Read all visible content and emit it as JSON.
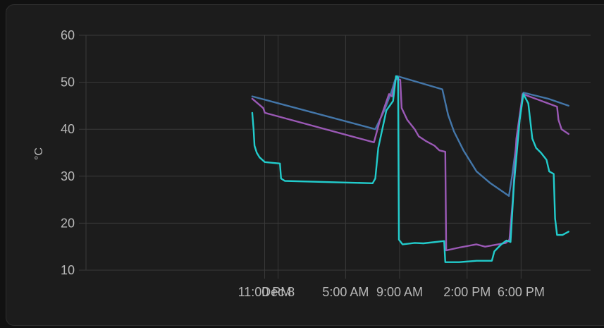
{
  "chart_data": {
    "type": "line",
    "ylabel": "°C",
    "ylim": [
      10,
      60
    ],
    "y_ticks": [
      10,
      20,
      30,
      40,
      50,
      60
    ],
    "xlim": [
      "2023-12-07T09:46",
      "2023-12-08T23:09"
    ],
    "x_tick_labels": [
      {
        "label": "11:00 PM",
        "t": "2023-12-07T23:00"
      },
      {
        "label": "Dec 8",
        "t": "2023-12-08T00:00"
      },
      {
        "label": "5:00 AM",
        "t": "2023-12-08T05:00"
      },
      {
        "label": "9:00 AM",
        "t": "2023-12-08T09:00"
      },
      {
        "label": "2:00 PM",
        "t": "2023-12-08T14:00"
      },
      {
        "label": "6:00 PM",
        "t": "2023-12-08T18:00"
      }
    ],
    "grid": true,
    "colors": {
      "background": "#1c1c1c",
      "grid": "#3a3a3a",
      "tick_text": "#b8b8b8"
    },
    "series": [
      {
        "color": "#4477aa",
        "points": [
          [
            "2023-12-07T22:05",
            47.0
          ],
          [
            "2023-12-08T07:12",
            40.0
          ],
          [
            "2023-12-08T07:52",
            44.0
          ],
          [
            "2023-12-08T08:24",
            48.0
          ],
          [
            "2023-12-08T08:40",
            50.5
          ],
          [
            "2023-12-08T08:49",
            51.3
          ],
          [
            "2023-12-08T12:10",
            48.5
          ],
          [
            "2023-12-08T12:36",
            43.0
          ],
          [
            "2023-12-08T13:02",
            39.5
          ],
          [
            "2023-12-08T13:44",
            35.5
          ],
          [
            "2023-12-08T14:42",
            31.0
          ],
          [
            "2023-12-08T15:44",
            28.5
          ],
          [
            "2023-12-08T17:06",
            25.8
          ],
          [
            "2023-12-08T17:20",
            30.0
          ],
          [
            "2023-12-08T17:42",
            38.0
          ],
          [
            "2023-12-08T18:10",
            47.8
          ],
          [
            "2023-12-08T20:00",
            46.5
          ],
          [
            "2023-12-08T21:31",
            45.0
          ]
        ]
      },
      {
        "color": "#9b59b6",
        "points": [
          [
            "2023-12-07T22:05",
            46.5
          ],
          [
            "2023-12-07T22:54",
            44.5
          ],
          [
            "2023-12-07T23:01",
            43.5
          ],
          [
            "2023-12-08T07:06",
            37.2
          ],
          [
            "2023-12-08T07:33",
            42.0
          ],
          [
            "2023-12-08T08:13",
            47.5
          ],
          [
            "2023-12-08T08:26",
            47.0
          ],
          [
            "2023-12-08T08:44",
            50.8
          ],
          [
            "2023-12-08T09:03",
            50.5
          ],
          [
            "2023-12-08T09:09",
            44.5
          ],
          [
            "2023-12-08T09:34",
            42.0
          ],
          [
            "2023-12-08T10:07",
            40.0
          ],
          [
            "2023-12-08T10:25",
            38.5
          ],
          [
            "2023-12-08T10:56",
            37.5
          ],
          [
            "2023-12-08T11:35",
            36.5
          ],
          [
            "2023-12-08T11:57",
            35.5
          ],
          [
            "2023-12-08T12:23",
            35.2
          ],
          [
            "2023-12-08T12:27",
            14.2
          ],
          [
            "2023-12-08T13:24",
            14.8
          ],
          [
            "2023-12-08T14:41",
            15.5
          ],
          [
            "2023-12-08T15:20",
            15.0
          ],
          [
            "2023-12-08T16:52",
            15.8
          ],
          [
            "2023-12-08T17:08",
            16.5
          ],
          [
            "2023-12-08T17:23",
            25.0
          ],
          [
            "2023-12-08T17:39",
            38.0
          ],
          [
            "2023-12-08T18:07",
            47.5
          ],
          [
            "2023-12-08T20:40",
            44.8
          ],
          [
            "2023-12-08T20:46",
            42.0
          ],
          [
            "2023-12-08T21:00",
            40.0
          ],
          [
            "2023-12-08T21:31",
            39.0
          ]
        ]
      },
      {
        "color": "#22cccc",
        "points": [
          [
            "2023-12-07T22:05",
            43.5
          ],
          [
            "2023-12-07T22:11",
            40.0
          ],
          [
            "2023-12-07T22:15",
            36.5
          ],
          [
            "2023-12-07T22:25",
            35.0
          ],
          [
            "2023-12-07T22:38",
            34.0
          ],
          [
            "2023-12-07T23:01",
            33.0
          ],
          [
            "2023-12-08T00:08",
            32.7
          ],
          [
            "2023-12-08T00:13",
            29.5
          ],
          [
            "2023-12-08T00:30",
            29.0
          ],
          [
            "2023-12-08T07:00",
            28.5
          ],
          [
            "2023-12-08T07:12",
            29.5
          ],
          [
            "2023-12-08T07:25",
            36.0
          ],
          [
            "2023-12-08T08:01",
            44.0
          ],
          [
            "2023-12-08T08:31",
            46.0
          ],
          [
            "2023-12-08T08:44",
            51.3
          ],
          [
            "2023-12-08T08:53",
            51.0
          ],
          [
            "2023-12-08T08:57",
            16.5
          ],
          [
            "2023-12-08T09:13",
            15.5
          ],
          [
            "2023-12-08T10:07",
            15.8
          ],
          [
            "2023-12-08T10:46",
            15.7
          ],
          [
            "2023-12-08T12:18",
            16.2
          ],
          [
            "2023-12-08T12:23",
            11.7
          ],
          [
            "2023-12-08T13:25",
            11.7
          ],
          [
            "2023-12-08T14:42",
            12.0
          ],
          [
            "2023-12-08T15:50",
            12.0
          ],
          [
            "2023-12-08T16:01",
            14.0
          ],
          [
            "2023-12-08T16:32",
            15.5
          ],
          [
            "2023-12-08T16:55",
            16.3
          ],
          [
            "2023-12-08T17:13",
            16.0
          ],
          [
            "2023-12-08T17:28",
            28.0
          ],
          [
            "2023-12-08T17:54",
            42.0
          ],
          [
            "2023-12-08T18:10",
            47.5
          ],
          [
            "2023-12-08T18:32",
            45.5
          ],
          [
            "2023-12-08T18:50",
            38.0
          ],
          [
            "2023-12-08T19:07",
            36.0
          ],
          [
            "2023-12-08T19:28",
            35.0
          ],
          [
            "2023-12-08T19:53",
            33.5
          ],
          [
            "2023-12-08T20:05",
            31.0
          ],
          [
            "2023-12-08T20:25",
            30.5
          ],
          [
            "2023-12-08T20:31",
            21.0
          ],
          [
            "2023-12-08T20:40",
            17.5
          ],
          [
            "2023-12-08T21:04",
            17.5
          ],
          [
            "2023-12-08T21:31",
            18.2
          ]
        ]
      }
    ]
  }
}
